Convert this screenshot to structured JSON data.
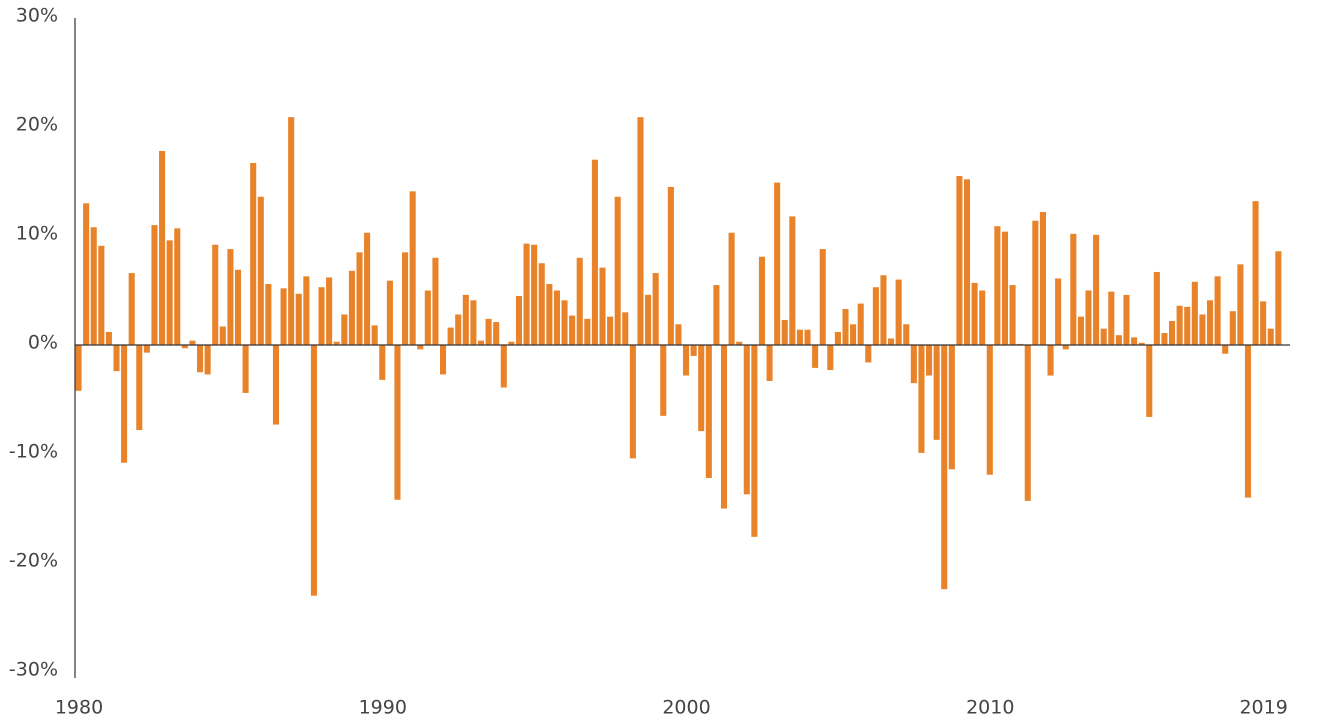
{
  "chart_data": {
    "type": "bar",
    "color": "#e8832a",
    "x": [
      1980,
      1980.25,
      1980.5,
      1980.75,
      1981,
      1981.25,
      1981.5,
      1981.75,
      1982,
      1982.25,
      1982.5,
      1982.75,
      1983,
      1983.25,
      1983.5,
      1983.75,
      1984,
      1984.25,
      1984.5,
      1984.75,
      1985,
      1985.25,
      1985.5,
      1985.75,
      1986,
      1986.25,
      1986.5,
      1986.75,
      1987,
      1987.25,
      1987.5,
      1987.75,
      1988,
      1988.25,
      1988.5,
      1988.75,
      1989,
      1989.25,
      1989.5,
      1989.75,
      1990,
      1990.25,
      1990.5,
      1990.75,
      1991,
      1991.25,
      1991.5,
      1991.75,
      1992,
      1992.25,
      1992.5,
      1992.75,
      1993,
      1993.25,
      1993.5,
      1993.75,
      1994,
      1994.25,
      1994.5,
      1994.75,
      1995,
      1995.25,
      1995.5,
      1995.75,
      1996,
      1996.25,
      1996.5,
      1996.75,
      1997,
      1997.25,
      1997.5,
      1997.75,
      1998,
      1998.25,
      1998.5,
      1998.75,
      1999,
      1999.25,
      1999.5,
      1999.75,
      2000,
      2000.25,
      2000.5,
      2000.75,
      2001,
      2001.25,
      2001.5,
      2001.75,
      2002,
      2002.25,
      2002.5,
      2002.75,
      2003,
      2003.25,
      2003.5,
      2003.75,
      2004,
      2004.25,
      2004.5,
      2004.75,
      2005,
      2005.25,
      2005.5,
      2005.75,
      2006,
      2006.25,
      2006.5,
      2006.75,
      2007,
      2007.25,
      2007.5,
      2007.75,
      2008,
      2008.25,
      2008.5,
      2008.75,
      2009,
      2009.25,
      2009.5,
      2009.75,
      2010,
      2010.25,
      2010.5,
      2010.75,
      2011,
      2011.25,
      2011.5,
      2011.75,
      2012,
      2012.25,
      2012.5,
      2012.75,
      2013,
      2013.25,
      2013.5,
      2013.75,
      2014,
      2014.25,
      2014.5,
      2014.75,
      2015,
      2015.25,
      2015.5,
      2015.75,
      2016,
      2016.25,
      2016.5,
      2016.75,
      2017,
      2017.25,
      2017.5,
      2017.75,
      2018,
      2018.25,
      2018.5,
      2018.75,
      2019,
      2019.25,
      2019.5
    ],
    "values": [
      -4.2,
      13.0,
      10.8,
      9.1,
      1.2,
      -2.4,
      -10.8,
      6.6,
      -7.8,
      -0.7,
      11.0,
      17.8,
      9.6,
      10.7,
      -0.3,
      0.4,
      -2.5,
      -2.7,
      9.2,
      1.7,
      8.8,
      6.9,
      -4.4,
      16.7,
      13.6,
      5.6,
      -7.3,
      5.2,
      20.9,
      4.7,
      6.3,
      -23.0,
      5.3,
      6.2,
      0.3,
      2.8,
      6.8,
      8.5,
      10.3,
      1.8,
      -3.2,
      5.9,
      -14.2,
      8.5,
      14.1,
      -0.4,
      5.0,
      8.0,
      -2.7,
      1.6,
      2.8,
      4.6,
      4.1,
      0.4,
      2.4,
      2.1,
      -3.9,
      0.3,
      4.5,
      9.3,
      9.2,
      7.5,
      5.6,
      5.0,
      4.1,
      2.7,
      8.0,
      2.4,
      17.0,
      7.1,
      2.6,
      13.6,
      3.0,
      -10.4,
      20.9,
      4.6,
      6.6,
      -6.5,
      14.5,
      1.9,
      -2.8,
      -1.0,
      -7.9,
      -12.2,
      5.5,
      -15.0,
      10.3,
      0.3,
      -13.7,
      -17.6,
      8.1,
      -3.3,
      14.9,
      2.3,
      11.8,
      1.4,
      1.4,
      -2.1,
      8.8,
      -2.3,
      1.2,
      3.3,
      1.9,
      3.8,
      -1.6,
      5.3,
      6.4,
      0.6,
      6.0,
      1.9,
      -3.5,
      -9.9,
      -2.8,
      -8.7,
      -22.4,
      -11.4,
      15.5,
      15.2,
      5.7,
      5.0,
      -11.9,
      10.9,
      10.4,
      5.5,
      0.1,
      -14.3,
      11.4,
      12.2,
      -2.8,
      6.1,
      -0.4,
      10.2,
      2.6,
      5.0,
      10.1,
      1.5,
      4.9,
      0.9,
      4.6,
      0.7,
      0.2,
      -6.6,
      6.7,
      1.1,
      2.2,
      3.6,
      3.5,
      5.8,
      2.8,
      4.1,
      6.3,
      -0.8,
      3.1,
      7.4,
      -14.0,
      13.2,
      4.0,
      1.5,
      8.6
    ],
    "xlim": [
      1980,
      2020
    ],
    "xticks": [
      1980,
      1990,
      2000,
      2010,
      2019
    ],
    "ylim": [
      -30,
      30
    ],
    "yticks": [
      {
        "value": -30,
        "label": "-30%"
      },
      {
        "value": -20,
        "label": "-20%"
      },
      {
        "value": -10,
        "label": "-10%"
      },
      {
        "value": 0,
        "label": "0%"
      },
      {
        "value": 10,
        "label": "10%"
      },
      {
        "value": 20,
        "label": "20%"
      },
      {
        "value": 30,
        "label": "30%"
      }
    ],
    "grid": false
  }
}
